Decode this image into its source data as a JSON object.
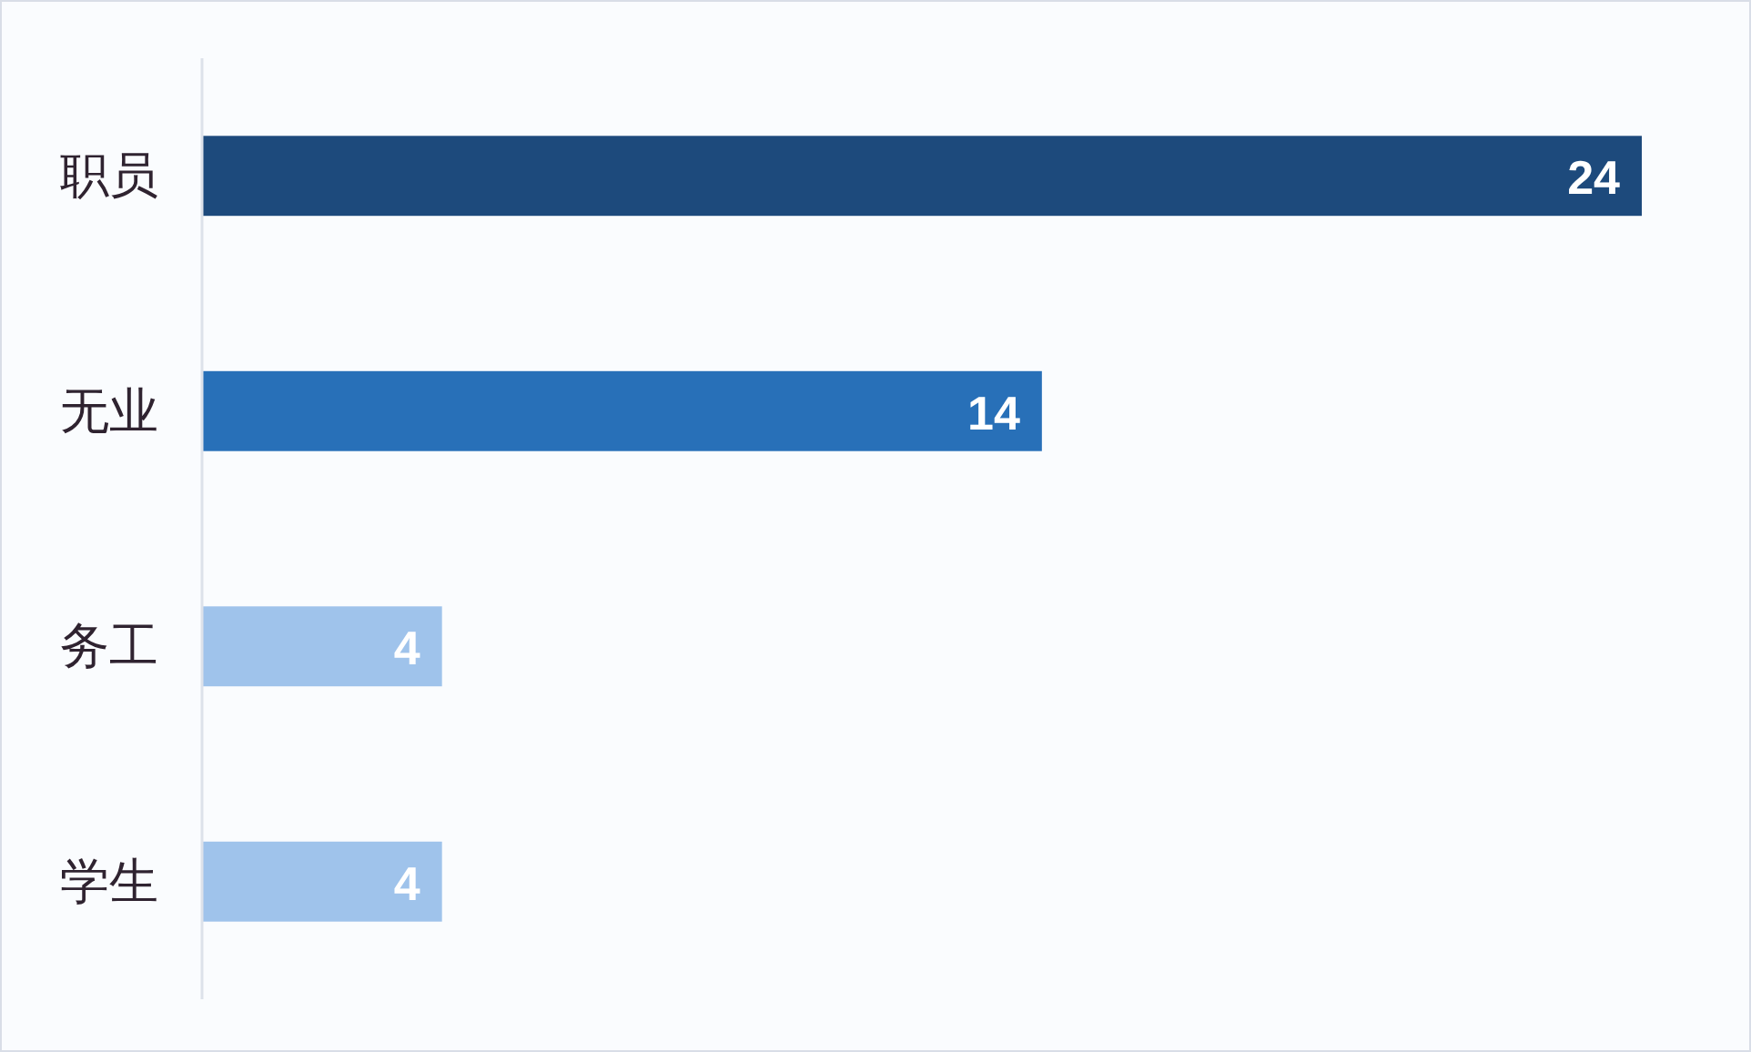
{
  "chart_data": {
    "type": "bar",
    "orientation": "horizontal",
    "categories": [
      "职员",
      "无业",
      "务工",
      "学生"
    ],
    "values": [
      24,
      14,
      4,
      4
    ],
    "colors": [
      "#1d4a7c",
      "#2870b8",
      "#9fc3eb",
      "#9fc3eb"
    ],
    "data_labels": true
  }
}
